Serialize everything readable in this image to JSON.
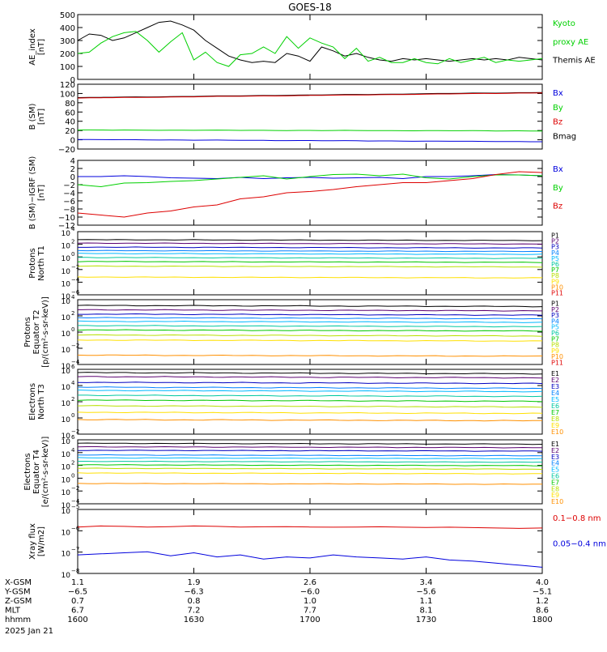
{
  "title": "GOES-18",
  "date": "2025 Jan 21",
  "colors": {
    "black": "#000000",
    "green": "#00d000",
    "red": "#dd0000",
    "blue": "#0000dd",
    "channels": [
      "#000000",
      "#5a0070",
      "#0000c0",
      "#0080ff",
      "#00b8ff",
      "#00c8a0",
      "#00c800",
      "#b8e000",
      "#ffe000",
      "#ff9000",
      "#e00000"
    ]
  },
  "chart_data": [
    {
      "id": "ae",
      "type": "line",
      "ylabel": [
        "AE_index",
        "[nT]"
      ],
      "ylim": [
        0,
        500
      ],
      "yticks": [
        "500",
        "400",
        "300",
        "200",
        "100",
        "0"
      ],
      "legend": [
        {
          "label": "Kyoto",
          "color": "#00d000"
        },
        {
          "label": "proxy AE",
          "color": "#00d000"
        },
        {
          "label": "Themis AE",
          "color": "#000000"
        }
      ],
      "x": [
        0,
        3,
        6,
        9,
        12,
        15,
        18,
        21,
        24,
        27,
        30,
        33,
        36,
        39,
        42,
        45,
        48,
        51,
        54,
        57,
        60,
        63,
        66,
        69,
        72,
        75,
        78,
        81,
        84,
        87,
        90,
        93,
        96,
        99,
        102,
        105,
        108,
        111,
        114,
        117,
        120
      ],
      "series": [
        {
          "name": "Themis AE",
          "color": "#000000",
          "values": [
            300,
            350,
            340,
            300,
            320,
            360,
            400,
            440,
            450,
            420,
            380,
            300,
            240,
            180,
            150,
            130,
            140,
            130,
            200,
            180,
            140,
            250,
            220,
            180,
            200,
            170,
            150,
            140,
            160,
            150,
            160,
            150,
            140,
            150,
            160,
            150,
            160,
            150,
            170,
            160,
            150
          ]
        },
        {
          "name": "Kyoto proxy AE",
          "color": "#00d000",
          "values": [
            200,
            210,
            280,
            330,
            360,
            370,
            300,
            210,
            290,
            360,
            150,
            210,
            130,
            100,
            190,
            200,
            250,
            200,
            330,
            240,
            320,
            280,
            250,
            160,
            240,
            140,
            170,
            130,
            130,
            160,
            130,
            120,
            160,
            130,
            150,
            170,
            130,
            150,
            140,
            150,
            160
          ]
        }
      ]
    },
    {
      "id": "bsm",
      "type": "line",
      "ylabel": [
        "B (SM)",
        "[nT]"
      ],
      "ylim": [
        -25,
        125
      ],
      "yticks": [
        "120",
        "100",
        "80",
        "60",
        "40",
        "20",
        "0",
        "−20"
      ],
      "legend": [
        {
          "label": "Bx",
          "color": "#0000dd"
        },
        {
          "label": "By",
          "color": "#00d000"
        },
        {
          "label": "Bz",
          "color": "#dd0000"
        },
        {
          "label": "Bmag",
          "color": "#000000"
        }
      ],
      "x": [
        0,
        120
      ],
      "series": [
        {
          "name": "Bmag",
          "color": "#000000",
          "values": [
            94,
            106
          ]
        },
        {
          "name": "Bz",
          "color": "#dd0000",
          "values": [
            93,
            105
          ]
        },
        {
          "name": "By",
          "color": "#00d000",
          "values": [
            19,
            17
          ]
        },
        {
          "name": "Bx",
          "color": "#0000dd",
          "values": [
            -3,
            -8
          ]
        }
      ]
    },
    {
      "id": "bigrf",
      "type": "line",
      "ylabel": [
        "B (SM)−IGRF (SM)",
        "[nT]"
      ],
      "ylim": [
        -12,
        4
      ],
      "yticks": [
        "4",
        "2",
        "0",
        "−2",
        "−4",
        "−6",
        "−8",
        "−10",
        "−12"
      ],
      "legend": [
        {
          "label": "Bx",
          "color": "#0000dd"
        },
        {
          "label": "By",
          "color": "#00d000"
        },
        {
          "label": "Bz",
          "color": "#dd0000"
        }
      ],
      "x": [
        0,
        6,
        12,
        18,
        24,
        30,
        36,
        42,
        48,
        54,
        60,
        66,
        72,
        78,
        84,
        90,
        96,
        102,
        108,
        114,
        120
      ],
      "series": [
        {
          "name": "Bx",
          "color": "#0000dd",
          "values": [
            0,
            0,
            0.2,
            0,
            -0.3,
            -0.4,
            -0.5,
            -0.2,
            -0.5,
            -0.3,
            -0.2,
            -0.4,
            -0.3,
            -0.2,
            -0.5,
            0,
            0,
            0.2,
            0.5,
            0.4,
            0.2
          ]
        },
        {
          "name": "By",
          "color": "#00d000",
          "values": [
            -2,
            -2.5,
            -1.6,
            -1.5,
            -1.2,
            -1,
            -0.6,
            -0.2,
            0.2,
            -0.6,
            0,
            0.5,
            0.6,
            0.2,
            0.6,
            -0.3,
            -0.6,
            0,
            0.4,
            0.4,
            0.2
          ]
        },
        {
          "name": "Bz",
          "color": "#dd0000",
          "values": [
            -9,
            -9.5,
            -10,
            -9,
            -8.5,
            -7.5,
            -7,
            -5.5,
            -5,
            -4,
            -3.7,
            -3.2,
            -2.5,
            -2,
            -1.5,
            -1.5,
            -1,
            -0.5,
            0.5,
            1.2,
            1
          ]
        }
      ]
    },
    {
      "id": "pn",
      "type": "line",
      "scale": "log",
      "ylabel": [
        "Protons",
        "North T1"
      ],
      "ylim": [
        -7,
        4
      ],
      "yticks": [
        {
          "b": "10",
          "e": "4"
        },
        {
          "b": "10",
          "e": "2"
        },
        {
          "b": "10",
          "e": "0"
        },
        {
          "b": "10",
          "e": "−2"
        },
        {
          "b": "10",
          "e": "−4"
        },
        {
          "b": "10",
          "e": "−6"
        }
      ],
      "legend": [
        "P1",
        "P2",
        "P3",
        "P4",
        "P5",
        "P6",
        "P7",
        "P8",
        "P9",
        "P10",
        "P11"
      ],
      "levels": [
        2.6,
        2.0,
        1.3,
        0.7,
        0.2,
        -0.5,
        -1.2,
        -2.0,
        -3.9
      ]
    },
    {
      "id": "pe",
      "type": "line",
      "scale": "log",
      "ylabel": [
        "Protons",
        "Equator T2",
        "[p/(cm²-s-sr-keV)]"
      ],
      "ylim": [
        -5,
        4
      ],
      "yticks": [
        {
          "b": "10",
          "e": "4"
        },
        {
          "b": "10",
          "e": "2"
        },
        {
          "b": "10",
          "e": "0"
        },
        {
          "b": "10",
          "e": "−2"
        },
        {
          "b": "10",
          "e": "−4"
        }
      ],
      "legend": [
        "P1",
        "P2",
        "P3",
        "P4",
        "P5",
        "P6",
        "P7",
        "P8",
        "P9",
        "P10",
        "P11"
      ],
      "levels": [
        3.2,
        2.6,
        2.0,
        1.5,
        1.0,
        0.4,
        -0.2,
        -0.9,
        -1.6,
        -3.7
      ]
    },
    {
      "id": "en",
      "type": "line",
      "scale": "log",
      "ylabel": [
        "Electrons",
        "North T3"
      ],
      "ylim": [
        -2,
        6
      ],
      "yticks": [
        {
          "b": "10",
          "e": "6"
        },
        {
          "b": "10",
          "e": "4"
        },
        {
          "b": "10",
          "e": "2"
        },
        {
          "b": "10",
          "e": "0"
        },
        {
          "b": "10",
          "e": "−2"
        }
      ],
      "legend": [
        "E1",
        "E2",
        "E3",
        "E4",
        "E5",
        "E6",
        "E7",
        "E8",
        "E9",
        "E10"
      ],
      "levels": [
        5.6,
        5.1,
        4.4,
        3.8,
        3.4,
        2.8,
        2.2,
        1.5,
        0.7,
        -0.2
      ]
    },
    {
      "id": "ee",
      "type": "line",
      "scale": "log",
      "ylabel": [
        "Electrons",
        "Equator T4",
        "[e/(cm²-s-sr-keV)]"
      ],
      "ylim": [
        -5,
        6
      ],
      "yticks": [
        {
          "b": "10",
          "e": "6"
        },
        {
          "b": "10",
          "e": "4"
        },
        {
          "b": "10",
          "e": "2"
        },
        {
          "b": "10",
          "e": "0"
        },
        {
          "b": "10",
          "e": "−2"
        },
        {
          "b": "10",
          "e": "−4"
        }
      ],
      "legend": [
        "E1",
        "E2",
        "E3",
        "E4",
        "E5",
        "E6",
        "E7",
        "E8",
        "E9",
        "E10"
      ],
      "levels": [
        5.4,
        4.8,
        4.2,
        3.4,
        2.9,
        2.3,
        1.7,
        1.1,
        0.3,
        -1.5
      ]
    },
    {
      "id": "xray",
      "type": "line",
      "scale": "log",
      "ylabel": [
        "Xray flux",
        "[W/m2]"
      ],
      "ylim": [
        -8.1,
        -5
      ],
      "yticks": [
        {
          "b": "10",
          "e": "−5"
        },
        {
          "b": "10",
          "e": "−6"
        },
        {
          "b": "10",
          "e": "−7"
        },
        {
          "b": "10",
          "e": "−8"
        }
      ],
      "legend": [
        {
          "label": "0.1−0.8 nm",
          "color": "#dd0000"
        },
        {
          "label": "0.05−0.4 nm",
          "color": "#0000dd"
        }
      ],
      "x": [
        0,
        6,
        12,
        18,
        24,
        30,
        36,
        42,
        48,
        54,
        60,
        66,
        72,
        78,
        84,
        90,
        96,
        102,
        108,
        114,
        120
      ],
      "series": [
        {
          "name": "0.1−0.8 nm",
          "color": "#dd0000",
          "values": [
            -5.85,
            -5.8,
            -5.82,
            -5.85,
            -5.83,
            -5.8,
            -5.82,
            -5.85,
            -5.84,
            -5.83,
            -5.85,
            -5.86,
            -5.85,
            -5.84,
            -5.86,
            -5.87,
            -5.86,
            -5.88,
            -5.9,
            -5.92,
            -5.9
          ]
        },
        {
          "name": "0.05−0.4 nm",
          "color": "#0000dd",
          "values": [
            -7.2,
            -7.15,
            -7.1,
            -7.05,
            -7.25,
            -7.1,
            -7.3,
            -7.2,
            -7.4,
            -7.3,
            -7.35,
            -7.2,
            -7.3,
            -7.35,
            -7.4,
            -7.3,
            -7.45,
            -7.5,
            -7.6,
            -7.7,
            -7.8
          ]
        }
      ]
    }
  ],
  "xaxis": {
    "row_labels": [
      "X-GSM",
      "Y-GSM",
      "Z-GSM",
      "MLT",
      "hhmm"
    ],
    "columns": [
      {
        "values": [
          "1.1",
          "−6.5",
          "0.7",
          "6.7",
          "1600"
        ]
      },
      {
        "values": [
          "1.9",
          "−6.3",
          "0.8",
          "7.2",
          "1630"
        ]
      },
      {
        "values": [
          "2.6",
          "−6.0",
          "1.0",
          "7.7",
          "1700"
        ]
      },
      {
        "values": [
          "3.4",
          "−5.6",
          "1.1",
          "8.1",
          "1730"
        ]
      },
      {
        "values": [
          "4.0",
          "−5.1",
          "1.2",
          "8.6",
          "1800"
        ]
      }
    ]
  }
}
